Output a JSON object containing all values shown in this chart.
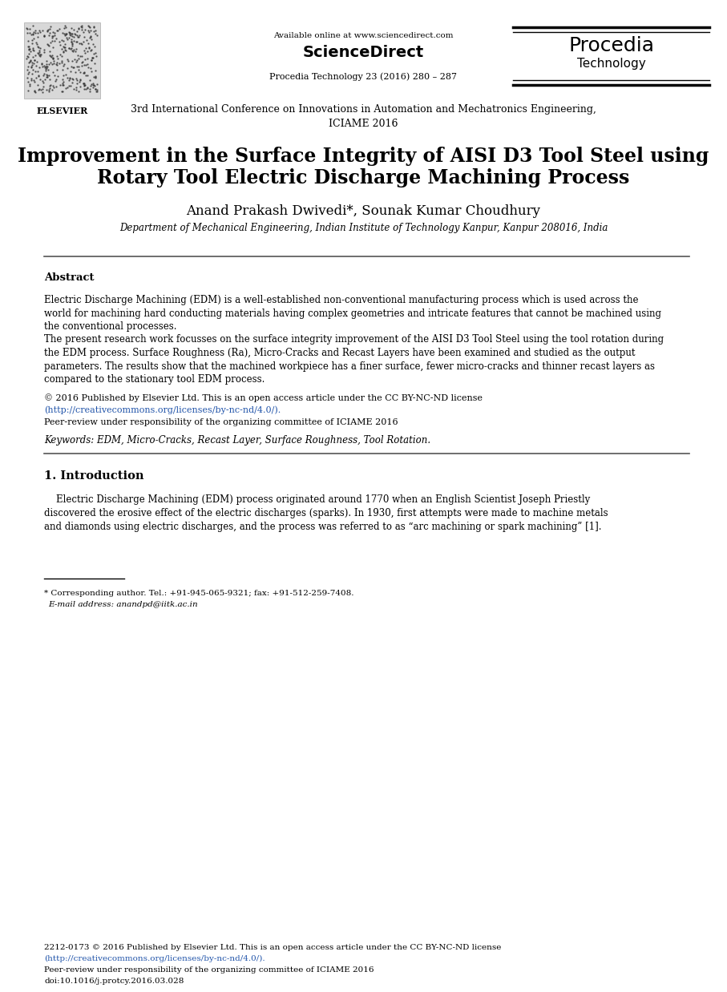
{
  "bg_color": "#ffffff",
  "page_width": 9.07,
  "page_height": 12.38,
  "dpi": 100,
  "header": {
    "available_online": "Available online at www.sciencedirect.com",
    "sciencedirect": "ScienceDirect",
    "journal": "Procedia Technology 23 (2016) 280 – 287",
    "procedia_line1": "Procedia",
    "procedia_line2": "Technology"
  },
  "conference_line1": "3rd International Conference on Innovations in Automation and Mechatronics Engineering,",
  "conference_line2": "ICIAME 2016",
  "title_line1": "Improvement in the Surface Integrity of AISI D3 Tool Steel using",
  "title_line2": "Rotary Tool Electric Discharge Machining Process",
  "authors": "Anand Prakash Dwivedi*, Sounak Kumar Choudhury",
  "affiliation": "Department of Mechanical Engineering, Indian Institute of Technology Kanpur, Kanpur 208016, India",
  "abstract_heading": "Abstract",
  "abstract_p1_lines": [
    "Electric Discharge Machining (EDM) is a well-established non-conventional manufacturing process which is used across the",
    "world for machining hard conducting materials having complex geometries and intricate features that cannot be machined using",
    "the conventional processes."
  ],
  "abstract_p2_lines": [
    "The present research work focusses on the surface integrity improvement of the AISI D3 Tool Steel using the tool rotation during",
    "the EDM process. Surface Roughness (Ra), Micro-Cracks and Recast Layers have been examined and studied as the output",
    "parameters. The results show that the machined workpiece has a finer surface, fewer micro-cracks and thinner recast layers as",
    "compared to the stationary tool EDM process."
  ],
  "license_line1": "© 2016 Published by Elsevier Ltd. This is an open access article under the CC BY-NC-ND license",
  "license_url": "(http://creativecommons.org/licenses/by-nc-nd/4.0/).",
  "license_line3": "Peer-review under responsibility of the organizing committee of ICIAME 2016",
  "keywords": "Keywords: EDM, Micro-Cracks, Recast Layer, Surface Roughness, Tool Rotation.",
  "section1_heading": "1. Introduction",
  "section1_lines": [
    "    Electric Discharge Machining (EDM) process originated around 1770 when an English Scientist Joseph Priestly",
    "discovered the erosive effect of the electric discharges (sparks). In 1930, first attempts were made to machine metals",
    "and diamonds using electric discharges, and the process was referred to as “arc machining or spark machining” [1]."
  ],
  "footnote1": "* Corresponding author. Tel.: +91-945-065-9321; fax: +91-512-259-7408.",
  "footnote2": "E-mail address: anandpd@iitk.ac.in",
  "footer_line1": "2212-0173 © 2016 Published by Elsevier Ltd. This is an open access article under the CC BY-NC-ND license",
  "footer_url": "(http://creativecommons.org/licenses/by-nc-nd/4.0/).",
  "footer_line3": "Peer-review under responsibility of the organizing committee of ICIAME 2016",
  "footer_doi": "doi:10.1016/j.protcy.2016.03.028",
  "link_color": "#2255aa"
}
